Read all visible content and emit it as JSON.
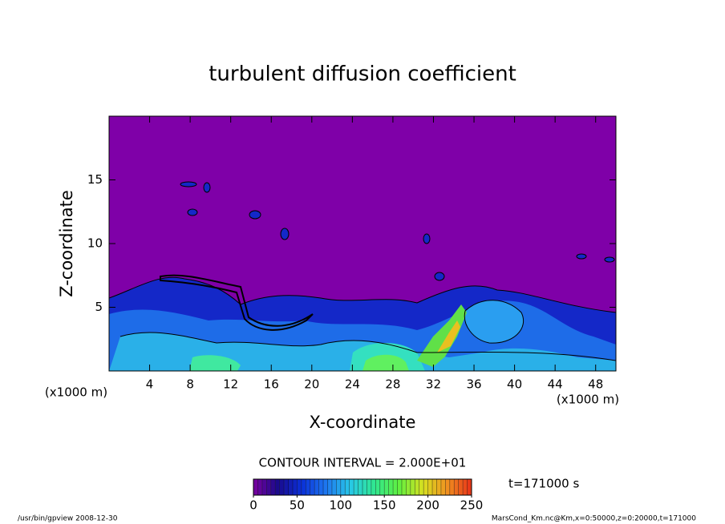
{
  "chart_data": {
    "type": "contour",
    "title": "turbulent diffusion coefficient",
    "xlabel": "X-coordinate",
    "ylabel": "Z-coordinate",
    "x_unit": "(x1000 m)",
    "y_unit": "(x1000 m)",
    "xlim": [
      0,
      50
    ],
    "ylim": [
      0,
      20
    ],
    "xticks": [
      4,
      8,
      12,
      16,
      20,
      24,
      28,
      32,
      36,
      40,
      44,
      48
    ],
    "yticks": [
      5,
      10,
      15
    ],
    "contour_interval": "CONTOUR INTERVAL = 2.000E+01",
    "time_label": "t=171000 s",
    "clim": [
      0,
      250
    ],
    "cticks": [
      0,
      50,
      100,
      150,
      200,
      250
    ],
    "colormap": [
      "#7a00a0",
      "#1a0a8c",
      "#0a30d8",
      "#1e78f0",
      "#28c8e8",
      "#30e890",
      "#60f040",
      "#d8e020",
      "#f09020",
      "#e83018"
    ],
    "footer_left": "/usr/bin/gpview  2008-12-30",
    "footer_right": "MarsCond_Km.nc@Km,x=0:50000,z=0:20000,t=171000"
  }
}
